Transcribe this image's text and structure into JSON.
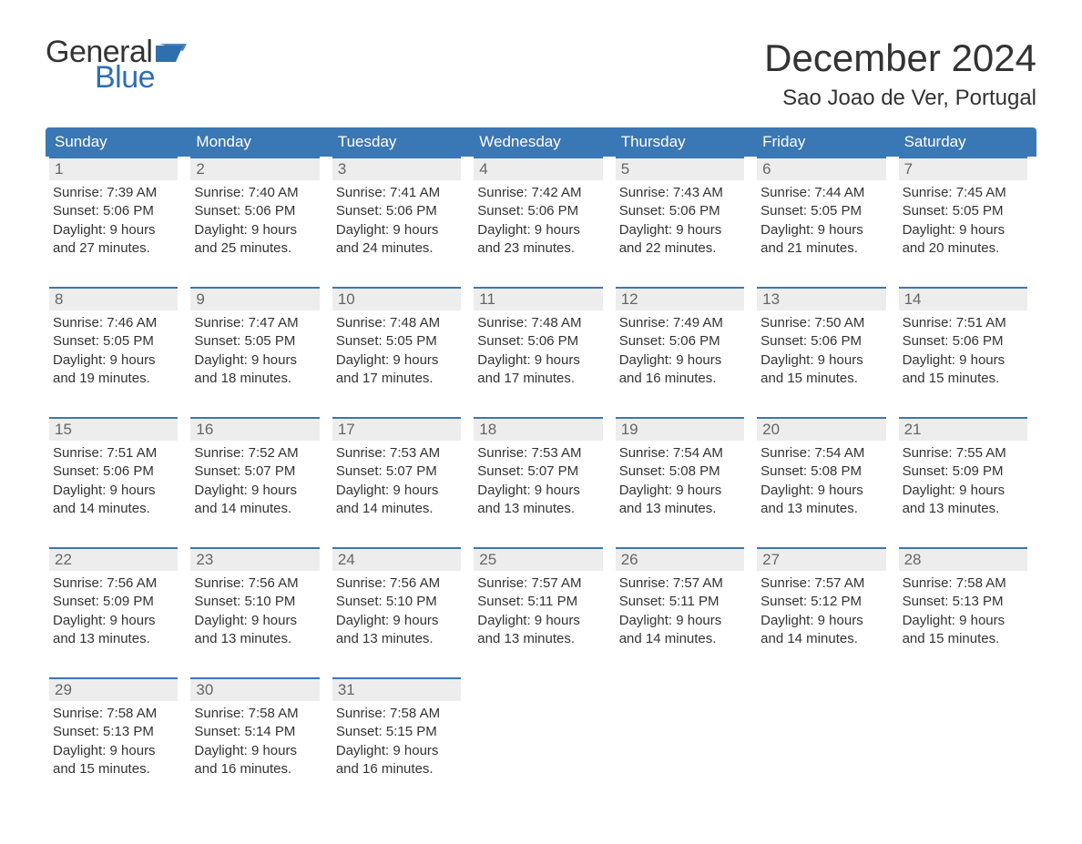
{
  "logo": {
    "textTop": "General",
    "textBottom": "Blue",
    "flagColor": "#2f6fb0"
  },
  "title": "December 2024",
  "subtitle": "Sao Joao de Ver, Portugal",
  "colors": {
    "headerBg": "#3a77b5",
    "dayNumberBg": "#ededed",
    "dayNumberBorderTop": "#3a77b5",
    "textColor": "#333333",
    "mutedText": "#666666",
    "background": "#ffffff"
  },
  "typography": {
    "body_fontsize": 15,
    "title_fontsize": 42,
    "subtitle_fontsize": 24,
    "header_fontsize": 17
  },
  "dayNames": [
    "Sunday",
    "Monday",
    "Tuesday",
    "Wednesday",
    "Thursday",
    "Friday",
    "Saturday"
  ],
  "weeks": [
    [
      {
        "n": "1",
        "sunrise": "7:39 AM",
        "sunset": "5:06 PM",
        "dlh": 9,
        "dlm": 27
      },
      {
        "n": "2",
        "sunrise": "7:40 AM",
        "sunset": "5:06 PM",
        "dlh": 9,
        "dlm": 25
      },
      {
        "n": "3",
        "sunrise": "7:41 AM",
        "sunset": "5:06 PM",
        "dlh": 9,
        "dlm": 24
      },
      {
        "n": "4",
        "sunrise": "7:42 AM",
        "sunset": "5:06 PM",
        "dlh": 9,
        "dlm": 23
      },
      {
        "n": "5",
        "sunrise": "7:43 AM",
        "sunset": "5:06 PM",
        "dlh": 9,
        "dlm": 22
      },
      {
        "n": "6",
        "sunrise": "7:44 AM",
        "sunset": "5:05 PM",
        "dlh": 9,
        "dlm": 21
      },
      {
        "n": "7",
        "sunrise": "7:45 AM",
        "sunset": "5:05 PM",
        "dlh": 9,
        "dlm": 20
      }
    ],
    [
      {
        "n": "8",
        "sunrise": "7:46 AM",
        "sunset": "5:05 PM",
        "dlh": 9,
        "dlm": 19
      },
      {
        "n": "9",
        "sunrise": "7:47 AM",
        "sunset": "5:05 PM",
        "dlh": 9,
        "dlm": 18
      },
      {
        "n": "10",
        "sunrise": "7:48 AM",
        "sunset": "5:05 PM",
        "dlh": 9,
        "dlm": 17
      },
      {
        "n": "11",
        "sunrise": "7:48 AM",
        "sunset": "5:06 PM",
        "dlh": 9,
        "dlm": 17
      },
      {
        "n": "12",
        "sunrise": "7:49 AM",
        "sunset": "5:06 PM",
        "dlh": 9,
        "dlm": 16
      },
      {
        "n": "13",
        "sunrise": "7:50 AM",
        "sunset": "5:06 PM",
        "dlh": 9,
        "dlm": 15
      },
      {
        "n": "14",
        "sunrise": "7:51 AM",
        "sunset": "5:06 PM",
        "dlh": 9,
        "dlm": 15
      }
    ],
    [
      {
        "n": "15",
        "sunrise": "7:51 AM",
        "sunset": "5:06 PM",
        "dlh": 9,
        "dlm": 14
      },
      {
        "n": "16",
        "sunrise": "7:52 AM",
        "sunset": "5:07 PM",
        "dlh": 9,
        "dlm": 14
      },
      {
        "n": "17",
        "sunrise": "7:53 AM",
        "sunset": "5:07 PM",
        "dlh": 9,
        "dlm": 14
      },
      {
        "n": "18",
        "sunrise": "7:53 AM",
        "sunset": "5:07 PM",
        "dlh": 9,
        "dlm": 13
      },
      {
        "n": "19",
        "sunrise": "7:54 AM",
        "sunset": "5:08 PM",
        "dlh": 9,
        "dlm": 13
      },
      {
        "n": "20",
        "sunrise": "7:54 AM",
        "sunset": "5:08 PM",
        "dlh": 9,
        "dlm": 13
      },
      {
        "n": "21",
        "sunrise": "7:55 AM",
        "sunset": "5:09 PM",
        "dlh": 9,
        "dlm": 13
      }
    ],
    [
      {
        "n": "22",
        "sunrise": "7:56 AM",
        "sunset": "5:09 PM",
        "dlh": 9,
        "dlm": 13
      },
      {
        "n": "23",
        "sunrise": "7:56 AM",
        "sunset": "5:10 PM",
        "dlh": 9,
        "dlm": 13
      },
      {
        "n": "24",
        "sunrise": "7:56 AM",
        "sunset": "5:10 PM",
        "dlh": 9,
        "dlm": 13
      },
      {
        "n": "25",
        "sunrise": "7:57 AM",
        "sunset": "5:11 PM",
        "dlh": 9,
        "dlm": 13
      },
      {
        "n": "26",
        "sunrise": "7:57 AM",
        "sunset": "5:11 PM",
        "dlh": 9,
        "dlm": 14
      },
      {
        "n": "27",
        "sunrise": "7:57 AM",
        "sunset": "5:12 PM",
        "dlh": 9,
        "dlm": 14
      },
      {
        "n": "28",
        "sunrise": "7:58 AM",
        "sunset": "5:13 PM",
        "dlh": 9,
        "dlm": 15
      }
    ],
    [
      {
        "n": "29",
        "sunrise": "7:58 AM",
        "sunset": "5:13 PM",
        "dlh": 9,
        "dlm": 15
      },
      {
        "n": "30",
        "sunrise": "7:58 AM",
        "sunset": "5:14 PM",
        "dlh": 9,
        "dlm": 16
      },
      {
        "n": "31",
        "sunrise": "7:58 AM",
        "sunset": "5:15 PM",
        "dlh": 9,
        "dlm": 16
      },
      null,
      null,
      null,
      null
    ]
  ],
  "labels": {
    "sunrise": "Sunrise:",
    "sunset": "Sunset:",
    "daylightPrefix": "Daylight:",
    "hoursWord": "hours",
    "andWord": "and",
    "minutesWord": "minutes."
  }
}
